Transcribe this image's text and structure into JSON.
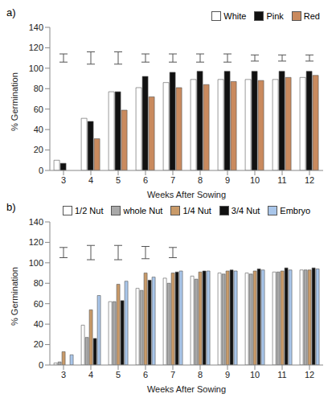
{
  "chart_data": [
    {
      "type": "bar",
      "title": "a)",
      "x_label": "Weeks After Sowing",
      "y_label": "% Germination",
      "categories": [
        "3",
        "4",
        "5",
        "6",
        "7",
        "8",
        "9",
        "10",
        "11",
        "12"
      ],
      "series": [
        {
          "name": "White",
          "color": "#ffffff",
          "values": [
            10,
            51,
            77,
            81,
            86,
            89,
            89,
            89,
            89,
            91
          ]
        },
        {
          "name": "Pink",
          "color": "#111111",
          "values": [
            7,
            48,
            77,
            92,
            96,
            97,
            97,
            97,
            97,
            97
          ]
        },
        {
          "name": "Red",
          "color": "#c98a5e",
          "values": [
            0,
            31,
            59,
            72,
            81,
            84,
            87,
            88,
            91,
            93
          ]
        }
      ],
      "error_bars": {
        "center": 110,
        "errors": [
          4,
          6,
          6,
          4,
          4,
          4,
          4,
          3,
          3,
          3
        ]
      },
      "ylim": [
        0,
        140
      ],
      "yticks": [
        0,
        20,
        40,
        60,
        80,
        100,
        120,
        140
      ],
      "legend": "top-right"
    },
    {
      "type": "bar",
      "title": "b)",
      "x_label": "Weeks After Sowing",
      "y_label": "% Germination",
      "categories": [
        "3",
        "4",
        "5",
        "6",
        "7",
        "8",
        "9",
        "10",
        "11",
        "12"
      ],
      "series": [
        {
          "name": "1/2 Nut",
          "color": "#ffffff",
          "values": [
            2,
            39,
            62,
            75,
            85,
            87,
            90,
            90,
            91,
            93
          ]
        },
        {
          "name": "whole Nut",
          "color": "#a9a9a9",
          "values": [
            3,
            27,
            62,
            73,
            80,
            84,
            89,
            89,
            91,
            93
          ]
        },
        {
          "name": "1/4 Nut",
          "color": "#c99a68",
          "values": [
            13,
            54,
            79,
            90,
            90,
            91,
            92,
            92,
            92,
            93
          ]
        },
        {
          "name": "3/4 Nut",
          "color": "#111111",
          "values": [
            0,
            26,
            63,
            83,
            91,
            92,
            93,
            94,
            95,
            95
          ]
        },
        {
          "name": "Embryo",
          "color": "#a9c6ea",
          "values": [
            10,
            68,
            82,
            86,
            92,
            92,
            92,
            93,
            93,
            94
          ]
        }
      ],
      "error_bars": {
        "center": 110,
        "errors": [
          5,
          7,
          7,
          6,
          5,
          null,
          null,
          null,
          null,
          null
        ]
      },
      "ylim": [
        0,
        140
      ],
      "yticks": [
        0,
        20,
        40,
        60,
        80,
        100,
        120,
        140
      ],
      "legend": "top-left"
    }
  ]
}
